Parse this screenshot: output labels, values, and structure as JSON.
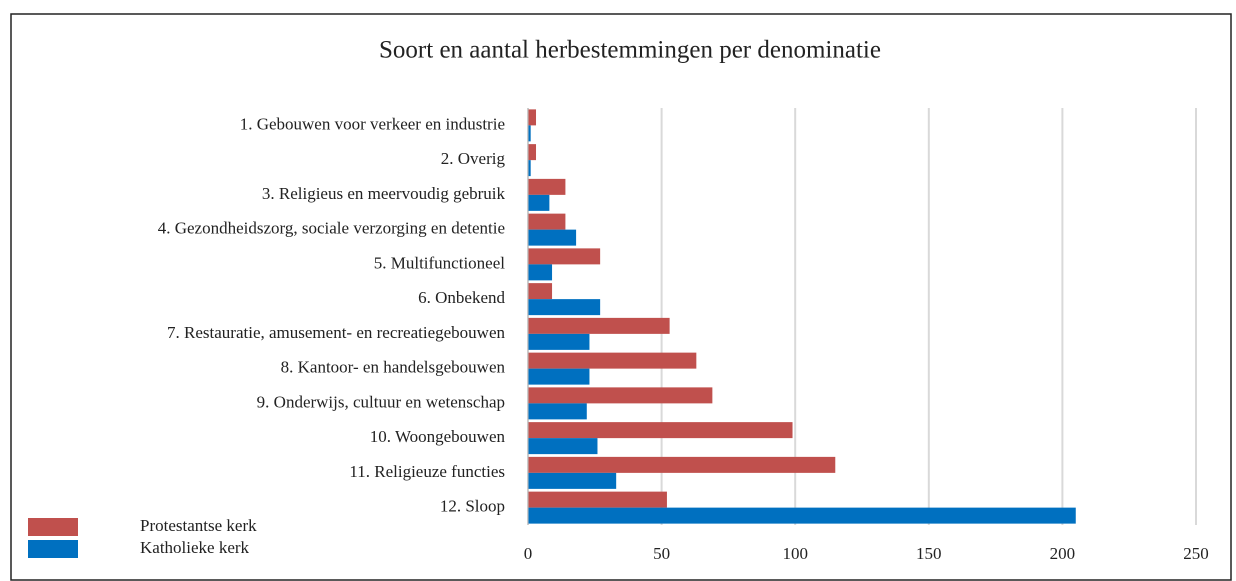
{
  "chart_data": {
    "type": "hbar",
    "title": "Soort en aantal herbestemmingen per denominatie",
    "categories": [
      "1. Gebouwen voor verkeer en industrie",
      "2. Overig",
      "3. Religieus en meervoudig gebruik",
      "4. Gezondheidszorg, sociale verzorging en detentie",
      "5. Multifunctioneel",
      "6. Onbekend",
      "7. Restauratie, amusement- en recreatiegebouwen",
      "8. Kantoor- en handelsgebouwen",
      "9. Onderwijs, cultuur en wetenschap",
      "10. Woongebouwen",
      "11. Religieuze functies",
      "12. Sloop"
    ],
    "series": [
      {
        "name": "Protestantse kerk",
        "color": "#c0504d",
        "values": [
          3,
          3,
          14,
          14,
          27,
          9,
          53,
          63,
          69,
          99,
          115,
          52
        ]
      },
      {
        "name": "Katholieke kerk",
        "color": "#0070c0",
        "values": [
          1,
          1,
          8,
          18,
          9,
          27,
          23,
          23,
          22,
          26,
          33,
          205
        ]
      }
    ],
    "xlim": [
      0,
      250
    ],
    "xticks": [
      0,
      50,
      100,
      150,
      200,
      250
    ],
    "grid": true,
    "legend": "bottom-left"
  }
}
